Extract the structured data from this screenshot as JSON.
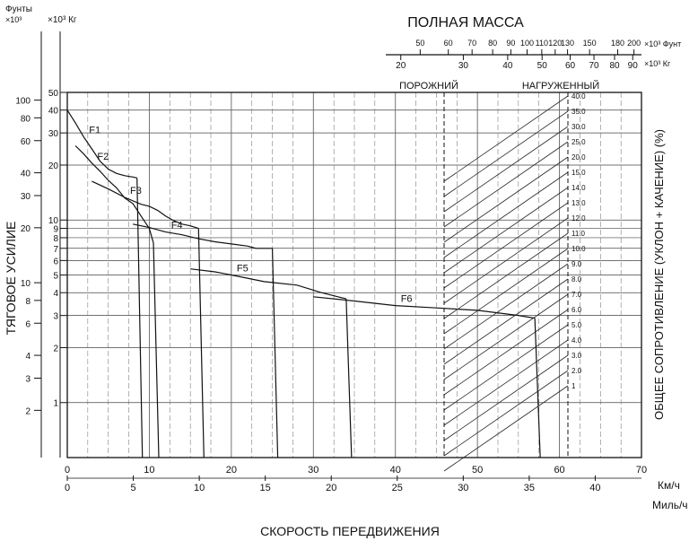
{
  "chart_data": {
    "type": "line",
    "title": "ПОЛНАЯ МАССА",
    "ylabel": "ТЯГОВОЕ УСИЛИЕ",
    "y2label": "ОБЩЕЕ СОПРОТИВЛЕНИЕ (УКЛОН + КАЧЕНИЕ) (%)",
    "xlabel": "СКОРОСТЬ ПЕРЕДВИЖЕНИЯ",
    "y_scale": "log",
    "grid": true,
    "left_axis": {
      "lb_label": "Фунты",
      "lb_mult": "×10³",
      "kg_label": "×10³  Кг",
      "lb_ticks": [
        "100",
        "80",
        "60",
        "40",
        "30",
        "20",
        "10",
        "8",
        "6",
        "4",
        "3",
        "2"
      ],
      "kg_ticks": [
        "50",
        "40",
        "30",
        "20",
        "10",
        "9",
        "8",
        "7",
        "6",
        "5",
        "4",
        "3",
        "2",
        "1"
      ]
    },
    "x_axes": {
      "kmh_label": "Км/ч",
      "kmh_ticks": [
        "0",
        "10",
        "20",
        "30",
        "40",
        "50",
        "60",
        "70"
      ],
      "mph_label": "Миль/ч",
      "mph_ticks": [
        "0",
        "5",
        "10",
        "15",
        "20",
        "25",
        "30",
        "35",
        "40"
      ]
    },
    "mass_scale": {
      "lb_unit": "×10³ Фунт",
      "kg_unit": "×10³ Кг",
      "lb_ticks": [
        "50",
        "60",
        "70",
        "80",
        "90",
        "100",
        "110",
        "120",
        "130",
        "150",
        "180",
        "200"
      ],
      "kg_ticks": [
        "20",
        "30",
        "40",
        "50",
        "60",
        "70",
        "80",
        "90"
      ],
      "empty_label": "ПОРОЖНИЙ",
      "loaded_label": "НАГРУЖЕННЫЙ"
    },
    "resistance_ticks": [
      "40.0",
      "35.0",
      "30.0",
      "25.0",
      "20.0",
      "15.0",
      "14.0",
      "13.0",
      "12.0",
      "11.0",
      "10.0",
      "9.0",
      "8.0",
      "7.0",
      "6.0",
      "5.0",
      "4.0",
      "3.0",
      "2.0",
      "1"
    ],
    "series": [
      {
        "name": "F1",
        "x": [
          0,
          1,
          2,
          3,
          4,
          5,
          6,
          7,
          8,
          8.5
        ],
        "y": [
          40,
          34,
          28.5,
          24.5,
          21,
          19,
          18,
          17.5,
          17.2,
          17
        ]
      },
      {
        "name": "F2",
        "x": [
          1,
          2,
          3,
          4,
          5,
          6,
          7,
          8,
          9,
          10,
          10.5
        ],
        "y": [
          25.5,
          23,
          20.5,
          18.5,
          16.5,
          15,
          13.2,
          12.3,
          10.5,
          9,
          7.5
        ]
      },
      {
        "name": "F3",
        "x": [
          3,
          5,
          7,
          9,
          10,
          11,
          12,
          13,
          14,
          15,
          16
        ],
        "y": [
          16.3,
          14.8,
          13.3,
          12.2,
          11.9,
          11.3,
          10.5,
          9.9,
          9.5,
          9.3,
          9
        ]
      },
      {
        "name": "F4",
        "x": [
          8,
          10,
          12,
          14,
          16,
          18,
          20,
          22,
          23,
          24,
          25
        ],
        "y": [
          9.5,
          9.1,
          8.6,
          8.3,
          7.9,
          7.6,
          7.4,
          7.2,
          7.0,
          7.0,
          7.0
        ]
      },
      {
        "name": "F5",
        "x": [
          15,
          18,
          20,
          24,
          28,
          31,
          33,
          34
        ],
        "y": [
          5.4,
          5.2,
          5.0,
          4.6,
          4.4,
          4.0,
          3.8,
          3.7
        ]
      },
      {
        "name": "F6",
        "x": [
          30,
          35,
          40,
          45,
          50,
          55,
          57
        ],
        "y": [
          3.8,
          3.6,
          3.4,
          3.3,
          3.2,
          3.0,
          2.9
        ]
      }
    ]
  }
}
